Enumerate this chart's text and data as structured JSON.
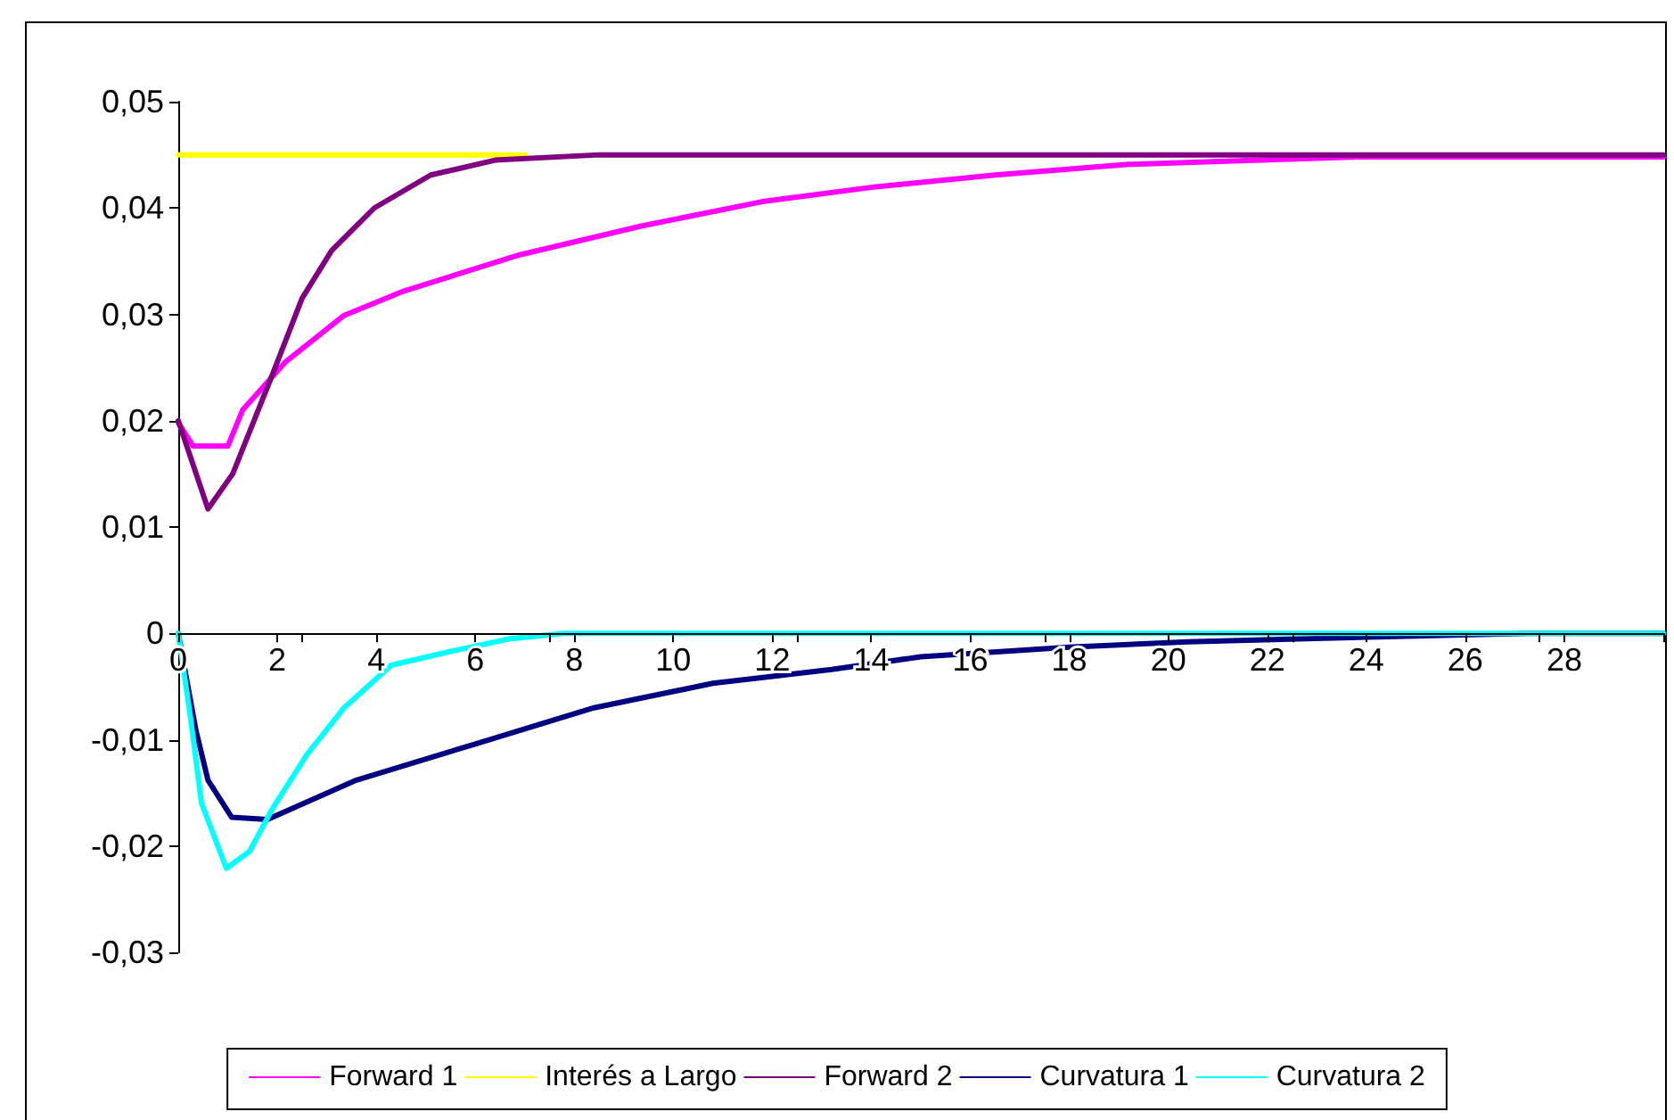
{
  "chart_data": {
    "type": "line",
    "xlim": [
      0,
      30
    ],
    "xticks": [
      0,
      2,
      4,
      6,
      8,
      10,
      12,
      14,
      16,
      18,
      20,
      22,
      24,
      26,
      28,
      {
        "value": 30,
        "label": null
      }
    ],
    "ylim": [
      -0.03,
      0.05
    ],
    "yticks": [
      {
        "value": -0.03,
        "label": "-0,03"
      },
      {
        "value": -0.02,
        "label": "-0,02"
      },
      {
        "value": -0.01,
        "label": "-0,01"
      },
      {
        "value": 0,
        "label": "0"
      },
      {
        "value": 0.01,
        "label": "0,01"
      },
      {
        "value": 0.02,
        "label": "0,02"
      },
      {
        "value": 0.03,
        "label": "0,03"
      },
      {
        "value": 0.04,
        "label": "0,04"
      },
      {
        "value": 0.05,
        "label": "0,05"
      }
    ],
    "grid": false,
    "legend": "bottom",
    "marker": "none",
    "line_style": "solid",
    "series": [
      {
        "name": "Forward 1",
        "color": "#ff00ff",
        "x": [
          0,
          0.3,
          1.0,
          1.3,
          2.16,
          3.35,
          4.56,
          6.9,
          9.35,
          11.8,
          14.1,
          16.5,
          19.2,
          23.8,
          30
        ],
        "values": [
          0.0198,
          0.0176,
          0.0176,
          0.021,
          0.0255,
          0.0299,
          0.0322,
          0.0356,
          0.0383,
          0.0406,
          0.042,
          0.0431,
          0.0441,
          0.0448,
          0.0448
        ]
      },
      {
        "name": "Interés a Largo",
        "color": "#ffff00",
        "x": [
          0,
          7
        ],
        "values": [
          0.045,
          0.045
        ]
      },
      {
        "name": "Forward 2",
        "color": "#800080",
        "x": [
          0,
          0.6,
          1.1,
          1.9,
          2.5,
          3.1,
          3.96,
          5.1,
          6.4,
          8.5,
          30
        ],
        "values": [
          0.02,
          0.0117,
          0.015,
          0.0243,
          0.0315,
          0.036,
          0.04,
          0.0431,
          0.0445,
          0.045,
          0.045
        ]
      },
      {
        "name": "Curvatura 1",
        "color": "#000080",
        "x": [
          0,
          0.36,
          0.6,
          1.08,
          1.8,
          3.6,
          6.0,
          8.4,
          10.8,
          13.2,
          15,
          18,
          20.4,
          22.8,
          27.3,
          30
        ],
        "values": [
          0,
          -0.0092,
          -0.0138,
          -0.0173,
          -0.0175,
          -0.0138,
          -0.0104,
          -0.007,
          -0.0047,
          -0.0034,
          -0.0022,
          -0.0013,
          -0.0008,
          -0.0005,
          0,
          0
        ]
      },
      {
        "name": "Curvatura 2",
        "color": "#00ffff",
        "x": [
          0,
          0.25,
          0.47,
          0.97,
          1.44,
          1.9,
          2.6,
          3.35,
          4.3,
          5.5,
          6.7,
          7.8,
          30
        ],
        "values": [
          0,
          -0.008,
          -0.016,
          -0.0221,
          -0.0205,
          -0.0165,
          -0.0114,
          -0.007,
          -0.003,
          -0.0017,
          -0.0005,
          0,
          0
        ]
      }
    ]
  }
}
